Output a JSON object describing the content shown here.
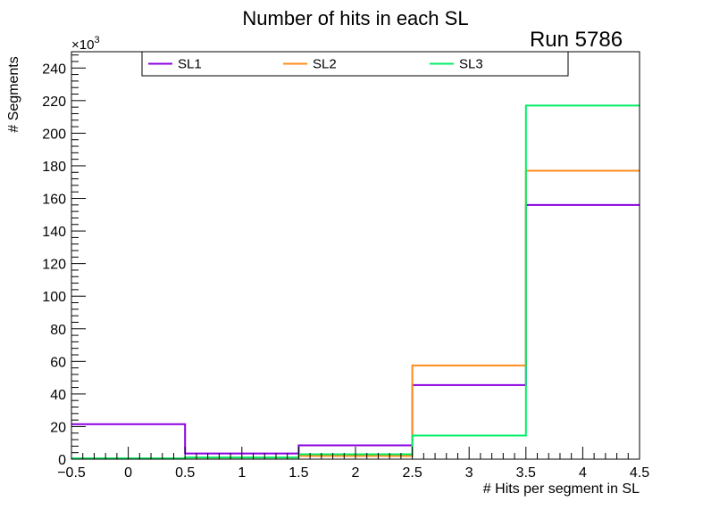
{
  "chart_data": {
    "type": "histogram-step",
    "title": "Number of hits in each SL",
    "annotation": "Run 5786",
    "xlabel": "# Hits per segment in SL",
    "ylabel": "# Segments",
    "y_multiplier": {
      "base": "×10",
      "exponent": "3"
    },
    "xlim": [
      -0.5,
      4.5
    ],
    "ylim": [
      0,
      250
    ],
    "x_ticks": [
      {
        "value": -0.5,
        "label": "−0.5"
      },
      {
        "value": 0,
        "label": "0"
      },
      {
        "value": 0.5,
        "label": "0.5"
      },
      {
        "value": 1,
        "label": "1"
      },
      {
        "value": 1.5,
        "label": "1.5"
      },
      {
        "value": 2,
        "label": "2"
      },
      {
        "value": 2.5,
        "label": "2.5"
      },
      {
        "value": 3,
        "label": "3"
      },
      {
        "value": 3.5,
        "label": "3.5"
      },
      {
        "value": 4,
        "label": "4"
      },
      {
        "value": 4.5,
        "label": "4.5"
      }
    ],
    "y_ticks": [
      0,
      20,
      40,
      60,
      80,
      100,
      120,
      140,
      160,
      180,
      200,
      220,
      240
    ],
    "bin_edges": [
      -0.5,
      0.5,
      1.5,
      2.5,
      3.5,
      4.5
    ],
    "legend_position": "top",
    "grid": false,
    "series": [
      {
        "name": "SL1",
        "color": "#8b00e0",
        "values": [
          21.5,
          3.5,
          8.5,
          45.5,
          156
        ]
      },
      {
        "name": "SL2",
        "color": "#ff8c1a",
        "values": [
          0.5,
          1,
          2,
          57.5,
          177
        ]
      },
      {
        "name": "SL3",
        "color": "#00ee66",
        "values": [
          0.5,
          1,
          3,
          14.5,
          217
        ]
      }
    ]
  }
}
